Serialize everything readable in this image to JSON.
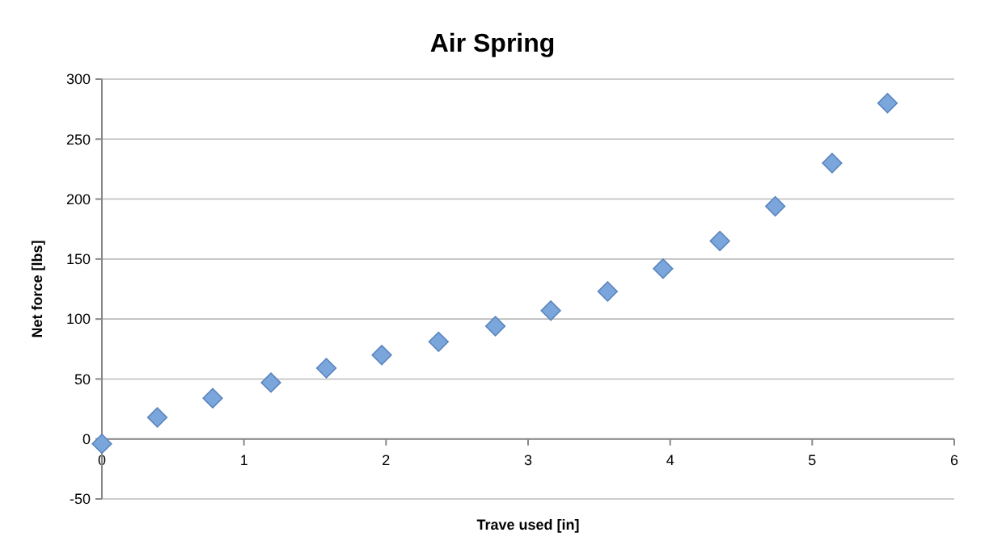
{
  "chart_data": {
    "type": "scatter",
    "title": "Air Spring",
    "xlabel": "Trave used [in]",
    "ylabel": "Net force [lbs]",
    "x": [
      0,
      0.39,
      0.78,
      1.19,
      1.58,
      1.97,
      2.37,
      2.77,
      3.16,
      3.56,
      3.95,
      4.35,
      4.74,
      5.14,
      5.53
    ],
    "series": [
      {
        "color": "#7aa6dc",
        "values": [
          -4,
          18,
          34,
          47,
          59,
          70,
          81,
          94,
          107,
          123,
          142,
          165,
          194,
          230,
          280
        ]
      }
    ],
    "xlim": [
      0,
      6
    ],
    "xticks": [
      0,
      1,
      2,
      3,
      4,
      5,
      6
    ],
    "ylim": [
      -50,
      300
    ],
    "yticks": [
      -50,
      0,
      50,
      100,
      150,
      200,
      250,
      300
    ],
    "grid": "y",
    "marker": "diamond"
  }
}
